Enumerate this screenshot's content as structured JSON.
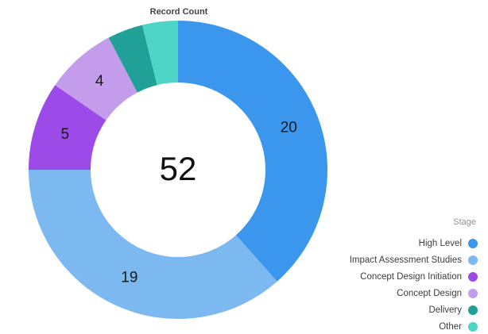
{
  "chart_data": {
    "type": "pie",
    "subtype": "donut",
    "title": "Record Count",
    "center_total": "52",
    "total": 52,
    "legend_title": "Stage",
    "legend_position": "right",
    "segments": [
      {
        "label": "High Level",
        "value": 20,
        "color": "#3b97ed",
        "show_value": true
      },
      {
        "label": "Impact Assessment Studies",
        "value": 19,
        "color": "#7cb9f0",
        "show_value": true
      },
      {
        "label": "Concept Design Initiation",
        "value": 5,
        "color": "#9d4be8",
        "show_value": true
      },
      {
        "label": "Concept Design",
        "value": 4,
        "color": "#c49cec",
        "show_value": true
      },
      {
        "label": "Delivery",
        "value": 2,
        "color": "#21a098",
        "show_value": false
      },
      {
        "label": "Other",
        "value": 2,
        "color": "#4fd5c6",
        "show_value": false
      }
    ]
  }
}
